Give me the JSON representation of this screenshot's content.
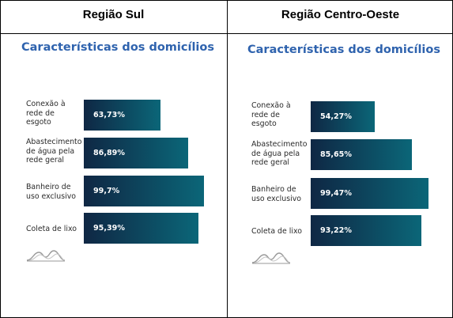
{
  "panels": [
    {
      "region": "Região Sul",
      "subtitle": "Características dos domicílios",
      "chart_data": {
        "type": "bar",
        "orientation": "horizontal",
        "title": "Características dos domicílios",
        "categories": [
          "Conexão à rede de esgoto",
          "Abastecimento de água pela rede geral",
          "Banheiro de uso exclusivo",
          "Coleta de lixo"
        ],
        "values": [
          63.73,
          86.89,
          99.7,
          95.39
        ],
        "value_labels": [
          "63,73%",
          "86,89%",
          "99,7%",
          "95,39%"
        ],
        "xlim": [
          0,
          100
        ],
        "grid": false
      }
    },
    {
      "region": "Região Centro-Oeste",
      "subtitle": "Características dos domicílios",
      "chart_data": {
        "type": "bar",
        "orientation": "horizontal",
        "title": "Características dos domicílios",
        "categories": [
          "Conexão à rede de esgoto",
          "Abastecimento de água pela rede geral",
          "Banheiro de uso exclusivo",
          "Coleta de lixo"
        ],
        "values": [
          54.27,
          85.65,
          99.47,
          93.22
        ],
        "value_labels": [
          "54,27%",
          "85,65%",
          "99,47%",
          "93,22%"
        ],
        "xlim": [
          0,
          100
        ],
        "grid": false
      }
    }
  ],
  "category_labels": [
    [
      "Conexão à",
      "rede de",
      "esgoto"
    ],
    [
      "Abastecimento",
      "de água pela",
      "rede geral"
    ],
    [
      "Banheiro de",
      "uso exclusivo"
    ],
    [
      "Coleta de lixo"
    ]
  ],
  "colors": {
    "bar_start": "#0f2744",
    "bar_end": "#0b6678",
    "subtitle": "#2f63ae",
    "border": "#000000"
  }
}
